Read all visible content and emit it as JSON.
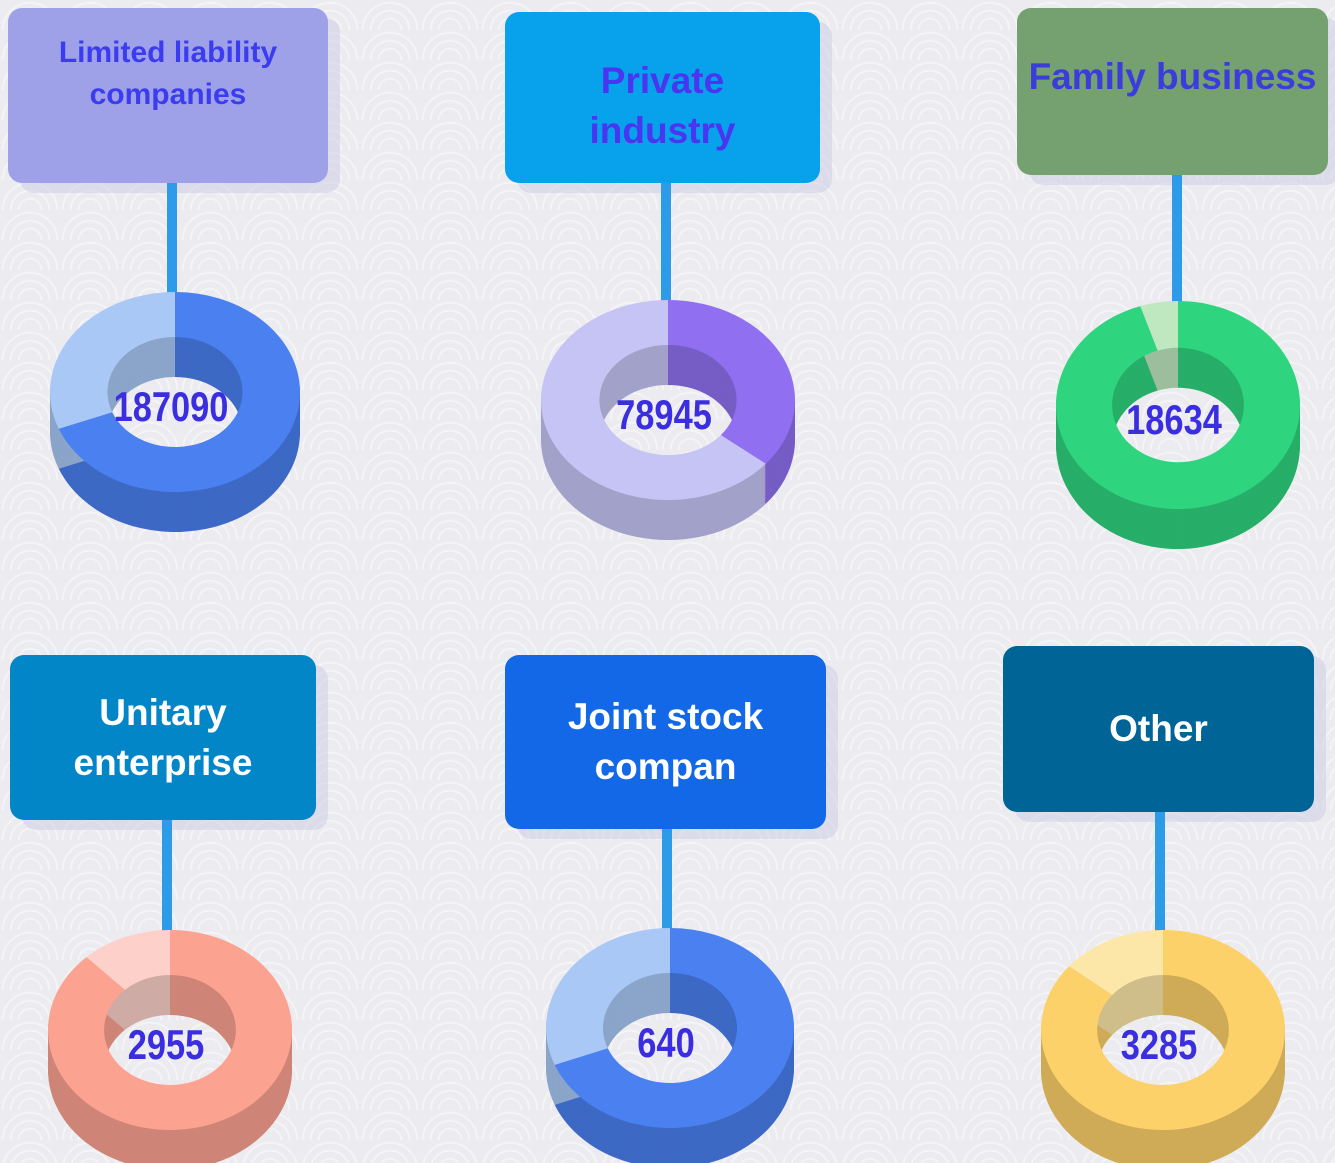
{
  "items": [
    {
      "label": "Limited liability companies",
      "value": 187090,
      "share": 69,
      "box_color": "#9fa1e8",
      "text_color": "#3b3cf0",
      "color": "#4a80f0",
      "light_color": "#a9c8f5"
    },
    {
      "label": "Private industry",
      "value": 78945,
      "share": 36,
      "box_color": "#07a1ec",
      "text_color": "#4a35f0",
      "color": "#9070f0",
      "light_color": "#c5c4f5"
    },
    {
      "label": "Family business",
      "value": 18634,
      "share": 95,
      "box_color": "#75a06f",
      "text_color": "#3b3cdc",
      "color": "#2fd47f",
      "light_color": "#bfe8c0"
    },
    {
      "label": "Unitary enterprise",
      "value": 2955,
      "share": 88,
      "box_color": "#0386c8",
      "text_color": "#ffffff",
      "color": "#fba291",
      "light_color": "#fdd1c9"
    },
    {
      "label": "Joint stock compan",
      "value": 640,
      "share": 69,
      "box_color": "#1268e6",
      "text_color": "#ffffff",
      "color": "#4a80f0",
      "light_color": "#a9c8f5"
    },
    {
      "label": "Other",
      "value": 3285,
      "share": 86,
      "box_color": "#006497",
      "text_color": "#ffffff",
      "color": "#fcd16a",
      "light_color": "#fde7a8"
    }
  ]
}
